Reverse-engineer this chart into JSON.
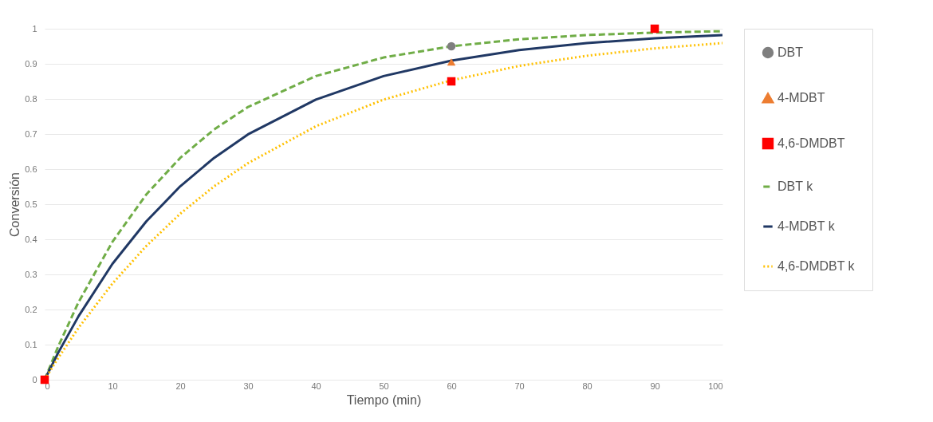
{
  "chart_data": {
    "type": "line",
    "xlabel": "Tiempo (min)",
    "ylabel": "Conversión",
    "xlim": [
      0,
      100
    ],
    "xticks": [
      0,
      10,
      20,
      30,
      40,
      50,
      60,
      70,
      80,
      90,
      100
    ],
    "ylim": [
      0,
      1
    ],
    "yticks": [
      0,
      0.1,
      0.2,
      0.3,
      0.4,
      0.5,
      0.6,
      0.7,
      0.8,
      0.9,
      1
    ],
    "grid": "y",
    "legend": "right",
    "series": [
      {
        "name": "DBT",
        "type": "scatter",
        "marker": "circle",
        "color": "#7f7f7f",
        "x": [
          60
        ],
        "values": [
          0.95
        ]
      },
      {
        "name": "4-MDBT",
        "type": "scatter",
        "marker": "triangle",
        "color": "#ed7d31",
        "x": [
          60
        ],
        "values": [
          0.905
        ]
      },
      {
        "name": "4,6-DMDBT",
        "type": "scatter",
        "marker": "square",
        "color": "#ff0000",
        "x": [
          0,
          60,
          90
        ],
        "values": [
          0,
          0.85,
          1.0
        ]
      },
      {
        "name": "DBT k",
        "line_style": "dashed",
        "color": "#70ad47",
        "x": [
          0,
          2,
          5,
          10,
          15,
          20,
          25,
          30,
          40,
          50,
          60,
          70,
          80,
          90,
          100
        ],
        "values": [
          0,
          0.095,
          0.221,
          0.393,
          0.528,
          0.632,
          0.713,
          0.777,
          0.865,
          0.918,
          0.95,
          0.97,
          0.982,
          0.989,
          0.993
        ]
      },
      {
        "name": "4-MDBT k",
        "line_style": "solid",
        "color": "#203864",
        "x": [
          0,
          2,
          5,
          10,
          15,
          20,
          25,
          30,
          40,
          50,
          60,
          70,
          80,
          90,
          100
        ],
        "values": [
          0,
          0.077,
          0.181,
          0.33,
          0.451,
          0.551,
          0.632,
          0.699,
          0.798,
          0.865,
          0.909,
          0.939,
          0.959,
          0.973,
          0.982
        ]
      },
      {
        "name": "4,6-DMDBT k",
        "line_style": "dotted",
        "color": "#ffc000",
        "x": [
          0,
          2,
          5,
          10,
          15,
          20,
          25,
          30,
          40,
          50,
          60,
          70,
          80,
          90,
          100
        ],
        "values": [
          0,
          0.062,
          0.148,
          0.274,
          0.381,
          0.473,
          0.551,
          0.617,
          0.722,
          0.798,
          0.853,
          0.894,
          0.923,
          0.944,
          0.959
        ]
      }
    ]
  }
}
